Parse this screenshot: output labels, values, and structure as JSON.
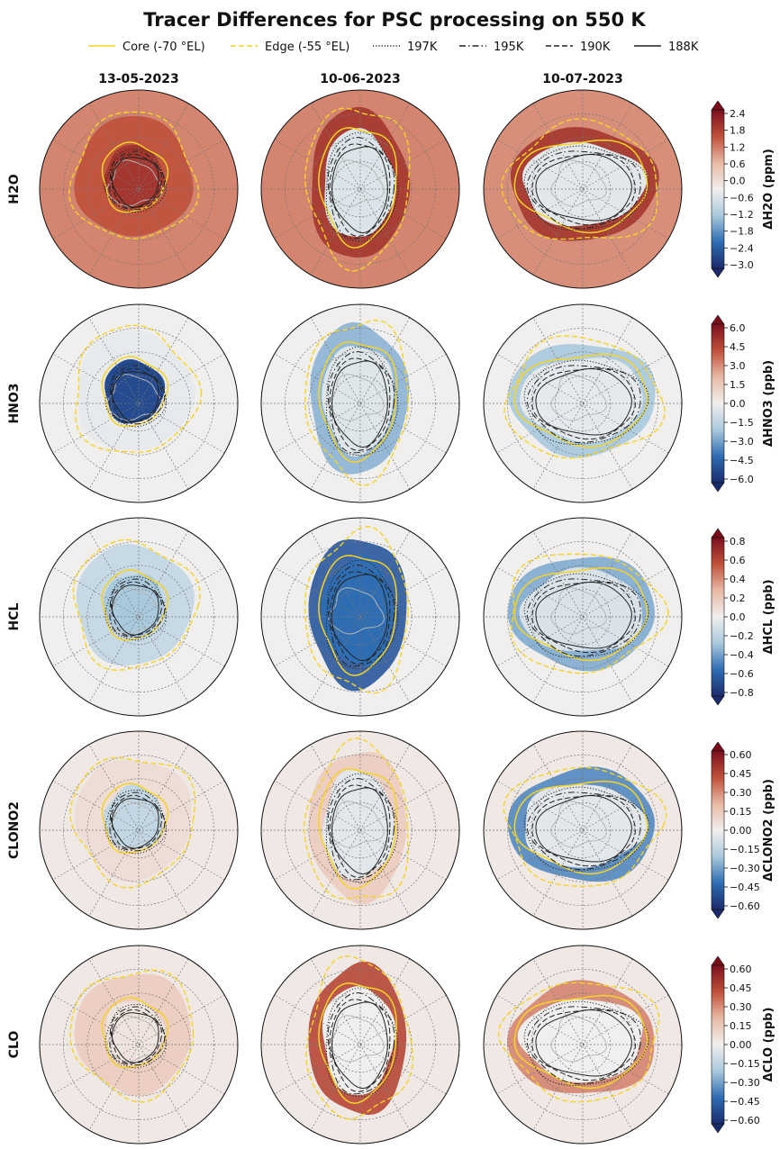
{
  "title": "Tracer Differences for PSC processing on 550 K",
  "legend": {
    "placement": "top-center",
    "entries": [
      {
        "label": "Core (-70 °EL)",
        "color": "#f5d327",
        "style": "solid"
      },
      {
        "label": "Edge (-55 °EL)",
        "color": "#f5d327",
        "style": "dashed"
      },
      {
        "label": "197K",
        "color": "#222222",
        "style": "dotted"
      },
      {
        "label": "195K",
        "color": "#222222",
        "style": "dashdot"
      },
      {
        "label": "190K",
        "color": "#222222",
        "style": "dashed"
      },
      {
        "label": "188K",
        "color": "#222222",
        "style": "solid"
      }
    ]
  },
  "columns": [
    "13-05-2023",
    "10-06-2023",
    "10-07-2023"
  ],
  "colors": {
    "neg_strong": "#1a2a6c",
    "neg_mid": "#2f6db3",
    "neg_light": "#a9c9dd",
    "neutral": "#f0efed",
    "pos_light": "#e8b9a4",
    "pos_mid": "#c0503a",
    "pos_strong": "#7a0f1c",
    "background_gray": "#e6e6e6",
    "core_edge": "#f5d327",
    "temperature": "#222222",
    "coastline": "#b8b8b8"
  },
  "chart_data": {
    "type": "heatmap",
    "projection": "south-polar-stereographic",
    "grid": true,
    "rows": [
      {
        "species": "H2O",
        "colorbar": {
          "label": "ΔH2O (ppm)",
          "range": [
            -3.0,
            2.4
          ],
          "ticks": [
            "2.4",
            "1.8",
            "1.2",
            "0.6",
            "0.0",
            "−0.6",
            "−1.2",
            "−1.8",
            "−2.4",
            "−3.0"
          ]
        },
        "panels": [
          {
            "date": "13-05-2023",
            "background_value": 1.5,
            "core_value": 2.4,
            "vortex_value": 2.0
          },
          {
            "date": "10-06-2023",
            "background_value": 1.5,
            "core_value": -0.3,
            "vortex_value": 2.4
          },
          {
            "date": "10-07-2023",
            "background_value": 1.4,
            "core_value": -0.2,
            "vortex_value": 2.4
          }
        ]
      },
      {
        "species": "HNO3",
        "colorbar": {
          "label": "ΔHNO3 (ppb)",
          "range": [
            -6.0,
            6.0
          ],
          "ticks": [
            "6.0",
            "4.5",
            "3.0",
            "1.5",
            "0.0",
            "−1.5",
            "−3.0",
            "−4.5",
            "−6.0"
          ]
        },
        "panels": [
          {
            "date": "13-05-2023",
            "background_value": 0.0,
            "core_value": -5.0,
            "vortex_value": -0.3
          },
          {
            "date": "10-06-2023",
            "background_value": 0.0,
            "core_value": -0.5,
            "vortex_value": -2.5
          },
          {
            "date": "10-07-2023",
            "background_value": 0.0,
            "core_value": -0.3,
            "vortex_value": -2.0
          }
        ]
      },
      {
        "species": "HCL",
        "colorbar": {
          "label": "ΔHCL (ppb)",
          "range": [
            -0.9,
            0.9
          ],
          "ticks": [
            "0.8",
            "0.6",
            "0.4",
            "0.2",
            "0.0",
            "−0.2",
            "−0.4",
            "−0.6",
            "−0.8"
          ]
        },
        "panels": [
          {
            "date": "13-05-2023",
            "background_value": 0.0,
            "core_value": -0.3,
            "vortex_value": -0.2
          },
          {
            "date": "10-06-2023",
            "background_value": 0.0,
            "core_value": -0.6,
            "vortex_value": -0.7
          },
          {
            "date": "10-07-2023",
            "background_value": 0.0,
            "core_value": -0.1,
            "vortex_value": -0.4
          }
        ]
      },
      {
        "species": "CLONO2",
        "colorbar": {
          "label": "ΔCLONO2 (ppb)",
          "range": [
            -0.7,
            0.7
          ],
          "ticks": [
            "0.60",
            "0.45",
            "0.30",
            "0.15",
            "0.00",
            "−0.15",
            "−0.30",
            "−0.45",
            "−0.60"
          ]
        },
        "panels": [
          {
            "date": "13-05-2023",
            "background_value": 0.03,
            "core_value": -0.15,
            "vortex_value": 0.08
          },
          {
            "date": "10-06-2023",
            "background_value": 0.03,
            "core_value": -0.05,
            "vortex_value": 0.15
          },
          {
            "date": "10-07-2023",
            "background_value": 0.03,
            "core_value": -0.05,
            "vortex_value": -0.4
          }
        ]
      },
      {
        "species": "CLO",
        "colorbar": {
          "label": "ΔCLO (ppb)",
          "range": [
            -0.7,
            0.7
          ],
          "ticks": [
            "0.60",
            "0.45",
            "0.30",
            "0.15",
            "0.00",
            "−0.15",
            "−0.30",
            "−0.45",
            "−0.60"
          ]
        },
        "panels": [
          {
            "date": "13-05-2023",
            "background_value": 0.03,
            "core_value": 0.05,
            "vortex_value": 0.15
          },
          {
            "date": "10-06-2023",
            "background_value": 0.03,
            "core_value": 0.0,
            "vortex_value": 0.5
          },
          {
            "date": "10-07-2023",
            "background_value": 0.03,
            "core_value": 0.0,
            "vortex_value": 0.35
          }
        ]
      }
    ]
  }
}
